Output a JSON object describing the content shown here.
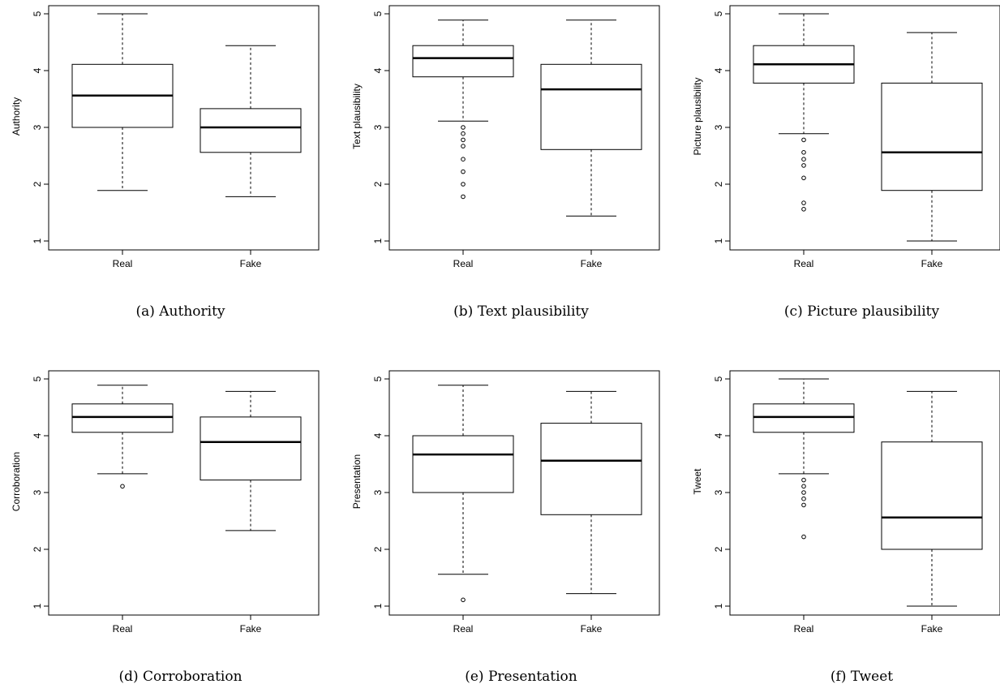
{
  "chart_data": [
    {
      "type": "boxplot",
      "caption": "(a) Authority",
      "ylabel": "Authority",
      "ylim": [
        0.8,
        5
      ],
      "yticks": [
        "1",
        "2",
        "3",
        "4",
        "5"
      ],
      "categories": [
        "Real",
        "Fake"
      ],
      "boxes": [
        {
          "category": "Real",
          "whisker_low": 1.89,
          "q1": 3.0,
          "median": 3.56,
          "q3": 4.11,
          "whisker_high": 5.0,
          "outliers": []
        },
        {
          "category": "Fake",
          "whisker_low": 1.78,
          "q1": 2.56,
          "median": 3.0,
          "q3": 3.33,
          "whisker_high": 4.44,
          "outliers": []
        }
      ]
    },
    {
      "type": "boxplot",
      "caption": "(b) Text plausibility",
      "ylabel": "Text plausibility",
      "ylim": [
        0.8,
        5
      ],
      "yticks": [
        "1",
        "2",
        "3",
        "4",
        "5"
      ],
      "categories": [
        "Real",
        "Fake"
      ],
      "boxes": [
        {
          "category": "Real",
          "whisker_low": 3.11,
          "q1": 3.89,
          "median": 4.22,
          "q3": 4.44,
          "whisker_high": 4.89,
          "outliers": [
            3.0,
            2.89,
            2.78,
            2.67,
            2.44,
            2.22,
            2.0,
            1.78
          ]
        },
        {
          "category": "Fake",
          "whisker_low": 1.44,
          "q1": 2.61,
          "median": 3.67,
          "q3": 4.11,
          "whisker_high": 4.89,
          "outliers": []
        }
      ]
    },
    {
      "type": "boxplot",
      "caption": "(c) Picture plausibility",
      "ylabel": "Picture plausibility",
      "ylim": [
        0.8,
        5
      ],
      "yticks": [
        "1",
        "2",
        "3",
        "4",
        "5"
      ],
      "categories": [
        "Real",
        "Fake"
      ],
      "boxes": [
        {
          "category": "Real",
          "whisker_low": 2.89,
          "q1": 3.78,
          "median": 4.11,
          "q3": 4.44,
          "whisker_high": 5.0,
          "outliers": [
            2.78,
            2.56,
            2.44,
            2.33,
            2.11,
            1.67,
            1.56
          ]
        },
        {
          "category": "Fake",
          "whisker_low": 1.0,
          "q1": 1.89,
          "median": 2.56,
          "q3": 3.78,
          "whisker_high": 4.67,
          "outliers": []
        }
      ]
    },
    {
      "type": "boxplot",
      "caption": "(d) Corroboration",
      "ylabel": "Corroboration",
      "ylim": [
        0.8,
        5
      ],
      "yticks": [
        "1",
        "2",
        "3",
        "4",
        "5"
      ],
      "categories": [
        "Real",
        "Fake"
      ],
      "boxes": [
        {
          "category": "Real",
          "whisker_low": 3.33,
          "q1": 4.06,
          "median": 4.33,
          "q3": 4.56,
          "whisker_high": 4.89,
          "outliers": [
            3.11
          ]
        },
        {
          "category": "Fake",
          "whisker_low": 2.33,
          "q1": 3.22,
          "median": 3.89,
          "q3": 4.33,
          "whisker_high": 4.78,
          "outliers": []
        }
      ]
    },
    {
      "type": "boxplot",
      "caption": "(e) Presentation",
      "ylabel": "Presentation",
      "ylim": [
        0.8,
        5
      ],
      "yticks": [
        "1",
        "2",
        "3",
        "4",
        "5"
      ],
      "categories": [
        "Real",
        "Fake"
      ],
      "boxes": [
        {
          "category": "Real",
          "whisker_low": 1.56,
          "q1": 3.0,
          "median": 3.67,
          "q3": 4.0,
          "whisker_high": 4.89,
          "outliers": [
            1.11
          ]
        },
        {
          "category": "Fake",
          "whisker_low": 1.22,
          "q1": 2.61,
          "median": 3.56,
          "q3": 4.22,
          "whisker_high": 4.78,
          "outliers": []
        }
      ]
    },
    {
      "type": "boxplot",
      "caption": "(f) Tweet",
      "ylabel": "Tweet",
      "ylim": [
        0.8,
        5
      ],
      "yticks": [
        "1",
        "2",
        "3",
        "4",
        "5"
      ],
      "categories": [
        "Real",
        "Fake"
      ],
      "boxes": [
        {
          "category": "Real",
          "whisker_low": 3.33,
          "q1": 4.06,
          "median": 4.33,
          "q3": 4.56,
          "whisker_high": 5.0,
          "outliers": [
            3.22,
            3.11,
            3.0,
            2.89,
            2.78,
            2.22
          ]
        },
        {
          "category": "Fake",
          "whisker_low": 1.0,
          "q1": 2.0,
          "median": 2.56,
          "q3": 3.89,
          "whisker_high": 4.78,
          "outliers": []
        }
      ]
    }
  ]
}
